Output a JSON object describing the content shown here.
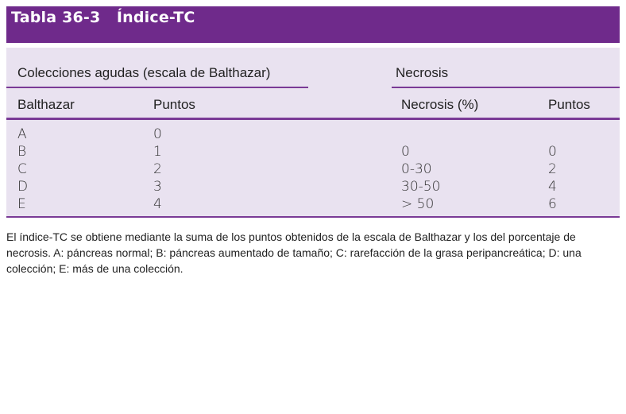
{
  "title": "Tabla 36-3   Índice-TC",
  "groups": {
    "left": "Colecciones agudas (escala de Balthazar)",
    "right": "Necrosis"
  },
  "headers": [
    "Balthazar",
    "Puntos",
    "Necrosis (%)",
    "Puntos"
  ],
  "rows": [
    [
      "A",
      "0",
      "",
      ""
    ],
    [
      "B",
      "1",
      "0",
      "0"
    ],
    [
      "C",
      "2",
      "0-30",
      "2"
    ],
    [
      "D",
      "3",
      "30-50",
      "4"
    ],
    [
      "E",
      "4",
      "> 50",
      "6"
    ]
  ],
  "footnote": [
    "El índice-TC se obtiene mediante la suma de los puntos obtenidos de la escala de Balthazar y los del porcentaje de",
    "necrosis. A: páncreas normal; B: páncreas aumentado de tamaño; C: rarefacción de la grasa peripancreática; D: una",
    "colección; E: más de una colección."
  ],
  "colors": {
    "accent": "#6f2a8b",
    "background": "#e9e2f0"
  }
}
